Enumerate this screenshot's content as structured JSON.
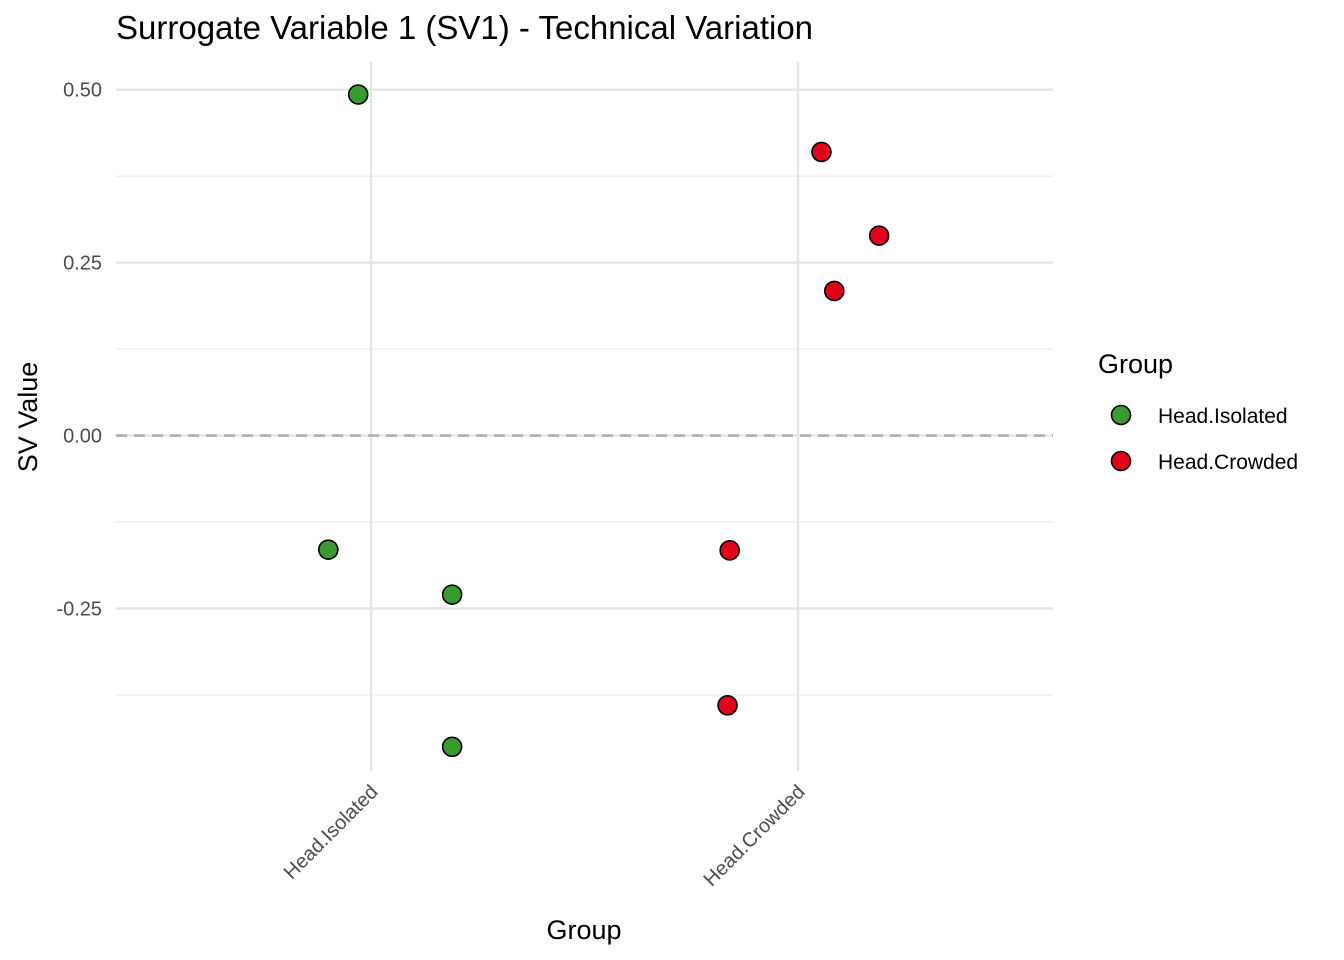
{
  "chart_data": {
    "type": "scatter",
    "title": "Surrogate Variable 1 (SV1) - Technical Variation",
    "xlabel": "Group",
    "ylabel": "SV Value",
    "categories": [
      "Head.Isolated",
      "Head.Crowded"
    ],
    "ylim": [
      -0.485,
      0.54
    ],
    "yticks": [
      -0.25,
      0.0,
      0.25,
      0.5
    ],
    "ytick_labels": [
      "-0.25",
      "0.00",
      "0.25",
      "0.50"
    ],
    "reference_line": {
      "y": 0,
      "style": "dashed"
    },
    "legend": {
      "title": "Group",
      "placement": "right"
    },
    "series": [
      {
        "name": "Head.Isolated",
        "color": "#3a9a32",
        "points": [
          {
            "category": "Head.Isolated",
            "jitter": -0.1,
            "y": -0.165
          },
          {
            "category": "Head.Isolated",
            "jitter": 0.19,
            "y": -0.23
          },
          {
            "category": "Head.Isolated",
            "jitter": 0.19,
            "y": -0.45
          },
          {
            "category": "Head.Isolated",
            "jitter": -0.03,
            "y": 0.493
          }
        ]
      },
      {
        "name": "Head.Crowded",
        "color": "#e1001a",
        "points": [
          {
            "category": "Head.Crowded",
            "jitter": 0.055,
            "y": 0.41
          },
          {
            "category": "Head.Crowded",
            "jitter": 0.19,
            "y": 0.289
          },
          {
            "category": "Head.Crowded",
            "jitter": 0.085,
            "y": 0.209
          },
          {
            "category": "Head.Crowded",
            "jitter": -0.16,
            "y": -0.166
          },
          {
            "category": "Head.Crowded",
            "jitter": -0.165,
            "y": -0.39
          }
        ]
      }
    ]
  }
}
